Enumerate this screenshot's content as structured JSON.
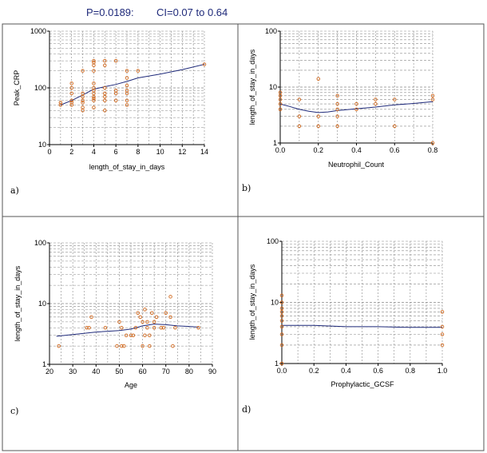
{
  "header": {
    "p_value": "P=0.0189:",
    "ci": "CI=0.07 to 0.64"
  },
  "colors": {
    "point": "#d2691e",
    "line": "#1f2a7a",
    "grid": "#888888",
    "border": "#555555"
  },
  "chart_data": [
    {
      "id": "a",
      "panel_label": "a)",
      "type": "scatter",
      "xlabel": "length_of_stay_in_days",
      "ylabel": "Peak_CRP",
      "xscale": "linear",
      "yscale": "log",
      "xlim": [
        0,
        14
      ],
      "ylim": [
        10,
        1000
      ],
      "xticks": [
        0,
        2,
        4,
        6,
        8,
        10,
        12,
        14
      ],
      "yticks": [
        10,
        100,
        1000
      ],
      "grid": true,
      "points": [
        [
          1,
          50
        ],
        [
          1,
          55
        ],
        [
          2,
          50
        ],
        [
          2,
          55
        ],
        [
          2,
          60
        ],
        [
          2,
          80
        ],
        [
          2,
          100
        ],
        [
          2,
          120
        ],
        [
          3,
          40
        ],
        [
          3,
          45
        ],
        [
          3,
          55
        ],
        [
          3,
          60
        ],
        [
          3,
          70
        ],
        [
          3,
          80
        ],
        [
          3,
          200
        ],
        [
          4,
          45
        ],
        [
          4,
          60
        ],
        [
          4,
          65
        ],
        [
          4,
          70
        ],
        [
          4,
          80
        ],
        [
          4,
          90
        ],
        [
          4,
          100
        ],
        [
          4,
          120
        ],
        [
          4,
          200
        ],
        [
          4,
          250
        ],
        [
          4,
          280
        ],
        [
          4,
          300
        ],
        [
          5,
          40
        ],
        [
          5,
          60
        ],
        [
          5,
          70
        ],
        [
          5,
          80
        ],
        [
          5,
          100
        ],
        [
          5,
          250
        ],
        [
          5,
          300
        ],
        [
          6,
          60
        ],
        [
          6,
          80
        ],
        [
          6,
          90
        ],
        [
          6,
          300
        ],
        [
          7,
          50
        ],
        [
          7,
          60
        ],
        [
          7,
          80
        ],
        [
          7,
          90
        ],
        [
          7,
          110
        ],
        [
          7,
          150
        ],
        [
          7,
          200
        ],
        [
          8,
          200
        ],
        [
          14,
          260
        ]
      ],
      "trend": [
        [
          1,
          50
        ],
        [
          2,
          60
        ],
        [
          3,
          75
        ],
        [
          4,
          95
        ],
        [
          5,
          105
        ],
        [
          6,
          115
        ],
        [
          7,
          130
        ],
        [
          8,
          150
        ],
        [
          10,
          175
        ],
        [
          12,
          210
        ],
        [
          14,
          260
        ]
      ]
    },
    {
      "id": "b",
      "panel_label": "b)",
      "type": "scatter",
      "xlabel": "Neutrophil_Count",
      "ylabel": "length_of_stay_in_days",
      "xscale": "linear",
      "yscale": "log",
      "xlim": [
        0,
        0.8
      ],
      "ylim": [
        1,
        100
      ],
      "xticks": [
        0,
        0.2,
        0.4,
        0.6,
        0.8
      ],
      "yticks": [
        1,
        10,
        100
      ],
      "grid": true,
      "points": [
        [
          0,
          5
        ],
        [
          0,
          6
        ],
        [
          0,
          7
        ],
        [
          0,
          8
        ],
        [
          0,
          4
        ],
        [
          0.1,
          2
        ],
        [
          0.1,
          3
        ],
        [
          0.1,
          6
        ],
        [
          0.2,
          2
        ],
        [
          0.2,
          3
        ],
        [
          0.2,
          14
        ],
        [
          0.3,
          2
        ],
        [
          0.3,
          3
        ],
        [
          0.3,
          4
        ],
        [
          0.3,
          5
        ],
        [
          0.3,
          7
        ],
        [
          0.4,
          4
        ],
        [
          0.4,
          5
        ],
        [
          0.5,
          5
        ],
        [
          0.5,
          6
        ],
        [
          0.6,
          2
        ],
        [
          0.6,
          6
        ],
        [
          0.8,
          1
        ],
        [
          0.8,
          6
        ],
        [
          0.8,
          7
        ]
      ],
      "trend": [
        [
          0,
          5
        ],
        [
          0.05,
          4.5
        ],
        [
          0.1,
          4
        ],
        [
          0.15,
          3.7
        ],
        [
          0.2,
          3.5
        ],
        [
          0.25,
          3.6
        ],
        [
          0.3,
          3.8
        ],
        [
          0.4,
          4.1
        ],
        [
          0.5,
          4.4
        ],
        [
          0.6,
          4.8
        ],
        [
          0.7,
          5.1
        ],
        [
          0.8,
          5.5
        ]
      ]
    },
    {
      "id": "c",
      "panel_label": "c)",
      "type": "scatter",
      "xlabel": "Age",
      "ylabel": "length_of_stay_in_days",
      "xscale": "linear",
      "yscale": "log",
      "xlim": [
        20,
        90
      ],
      "ylim": [
        1,
        100
      ],
      "xticks": [
        20,
        30,
        40,
        50,
        60,
        70,
        80,
        90
      ],
      "yticks": [
        1,
        10,
        100
      ],
      "grid": true,
      "points": [
        [
          24,
          2
        ],
        [
          36,
          4
        ],
        [
          37,
          4
        ],
        [
          38,
          6
        ],
        [
          44,
          4
        ],
        [
          49,
          2
        ],
        [
          50,
          5
        ],
        [
          51,
          2
        ],
        [
          51,
          4
        ],
        [
          52,
          2
        ],
        [
          53,
          3
        ],
        [
          55,
          3
        ],
        [
          56,
          3
        ],
        [
          57,
          4
        ],
        [
          58,
          7
        ],
        [
          59,
          6
        ],
        [
          60,
          5
        ],
        [
          60,
          2
        ],
        [
          61,
          8
        ],
        [
          61,
          3
        ],
        [
          62,
          4
        ],
        [
          62,
          5
        ],
        [
          63,
          2
        ],
        [
          63,
          3
        ],
        [
          64,
          7
        ],
        [
          65,
          4
        ],
        [
          65,
          5
        ],
        [
          66,
          6
        ],
        [
          68,
          4
        ],
        [
          69,
          4
        ],
        [
          70,
          7
        ],
        [
          72,
          13
        ],
        [
          72,
          6
        ],
        [
          73,
          2
        ],
        [
          74,
          4
        ],
        [
          84,
          4
        ]
      ],
      "trend": [
        [
          23,
          2.9
        ],
        [
          30,
          3.1
        ],
        [
          40,
          3.4
        ],
        [
          50,
          3.6
        ],
        [
          55,
          3.8
        ],
        [
          60,
          4.3
        ],
        [
          65,
          4.6
        ],
        [
          70,
          4.5
        ],
        [
          75,
          4.3
        ],
        [
          80,
          4.2
        ],
        [
          84,
          4.1
        ]
      ]
    },
    {
      "id": "d",
      "panel_label": "d)",
      "type": "scatter",
      "xlabel": "Prophylactic_GCSF",
      "ylabel": "length_of_stay_in_days",
      "xscale": "linear",
      "yscale": "log",
      "xlim": [
        0,
        1
      ],
      "ylim": [
        1,
        100
      ],
      "xticks": [
        0,
        0.2,
        0.4,
        0.6,
        0.8,
        1
      ],
      "yticks": [
        1,
        10,
        100
      ],
      "grid": true,
      "points": [
        [
          0,
          1
        ],
        [
          0,
          2
        ],
        [
          0,
          3
        ],
        [
          0,
          4
        ],
        [
          0,
          5
        ],
        [
          0,
          6
        ],
        [
          0,
          7
        ],
        [
          0,
          8
        ],
        [
          0,
          10
        ],
        [
          0,
          13
        ],
        [
          1,
          2
        ],
        [
          1,
          3
        ],
        [
          1,
          4
        ],
        [
          1,
          7
        ]
      ],
      "trend": [
        [
          0,
          4.2
        ],
        [
          0.2,
          4.2
        ],
        [
          0.4,
          4.0
        ],
        [
          0.6,
          4.0
        ],
        [
          0.8,
          3.9
        ],
        [
          1,
          3.9
        ]
      ]
    }
  ]
}
